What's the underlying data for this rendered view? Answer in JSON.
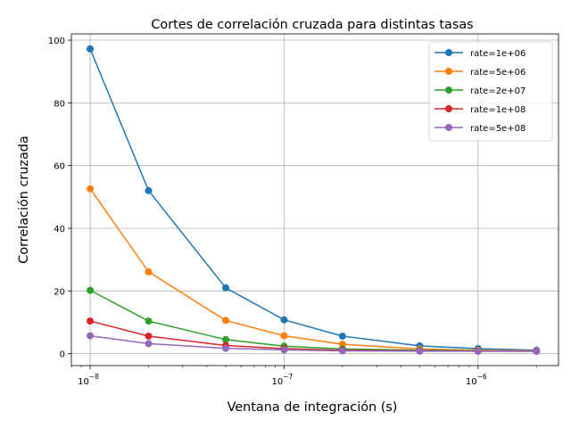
{
  "chart_data": {
    "type": "line",
    "title": "Cortes de correlación cruzada para distintas tasas",
    "xlabel": "Ventana de integración (s)",
    "ylabel": "Correlación cruzada",
    "xscale": "log",
    "xlim": [
      8e-09,
      2.6e-06
    ],
    "ylim": [
      -3.8,
      102
    ],
    "grid": true,
    "legend_position": "top-right",
    "x": [
      1e-08,
      2e-08,
      5e-08,
      1e-07,
      2e-07,
      5e-07,
      1e-06,
      2e-06
    ],
    "x_ticks": [
      {
        "value": 1e-08,
        "base": "10",
        "exp": "−8"
      },
      {
        "value": 1e-07,
        "base": "10",
        "exp": "−7"
      },
      {
        "value": 1e-06,
        "base": "10",
        "exp": "−6"
      }
    ],
    "y_ticks": [
      0,
      20,
      40,
      60,
      80,
      100
    ],
    "series": [
      {
        "name": "rate=1e+06",
        "color": "#1f77b4",
        "values": [
          97.2,
          52.0,
          21.0,
          10.8,
          5.6,
          2.5,
          1.6,
          1.1
        ]
      },
      {
        "name": "rate=5e+06",
        "color": "#ff7f0e",
        "values": [
          52.6,
          26.1,
          10.6,
          5.7,
          3.0,
          1.5,
          1.1,
          0.9
        ]
      },
      {
        "name": "rate=2e+07",
        "color": "#2ca02c",
        "values": [
          20.2,
          10.4,
          4.5,
          2.4,
          1.5,
          1.1,
          0.9,
          0.8
        ]
      },
      {
        "name": "rate=1e+08",
        "color": "#d62728",
        "values": [
          10.4,
          5.6,
          2.6,
          1.6,
          1.1,
          0.9,
          0.8,
          0.8
        ]
      },
      {
        "name": "rate=5e+08",
        "color": "#9467bd",
        "values": [
          5.7,
          3.2,
          1.7,
          1.2,
          0.9,
          0.8,
          0.8,
          0.8
        ]
      }
    ]
  }
}
